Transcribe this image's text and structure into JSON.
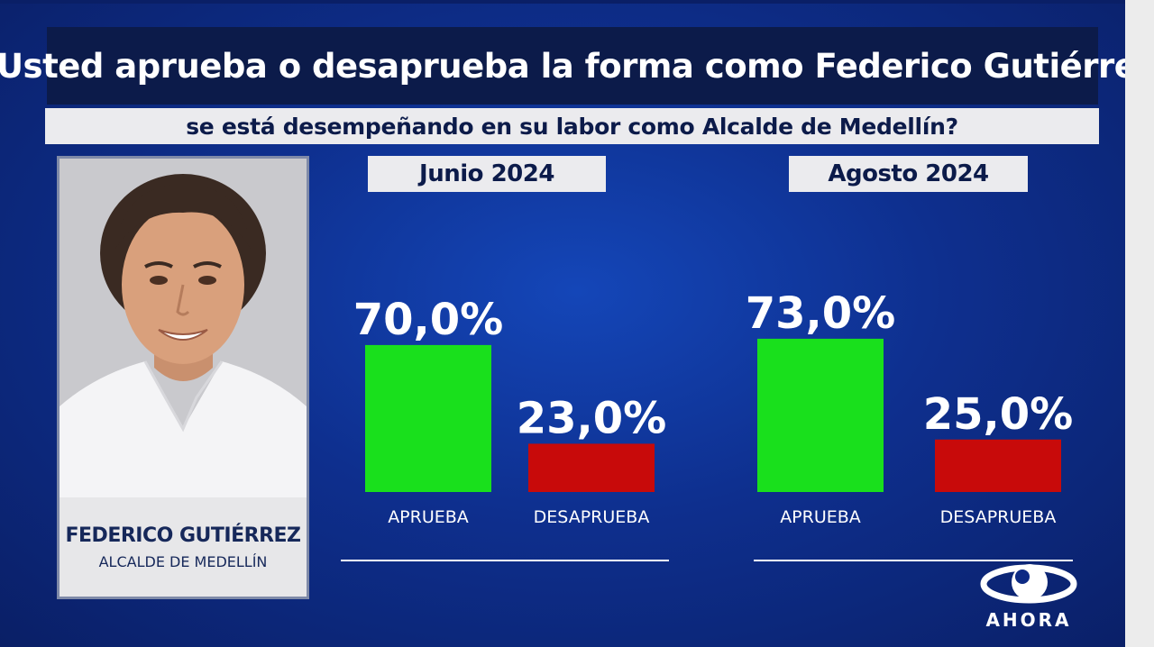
{
  "header": {
    "title": "¿Usted aprueba o desaprueba la forma como Federico Gutiérrez,",
    "subtitle": "se está desempeñando en su labor como Alcalde de Medellín?"
  },
  "candidate": {
    "name": "FEDERICO GUTIÉRREZ",
    "role": "ALCALDE DE MEDELLÍN"
  },
  "brand": {
    "name": "AHORA"
  },
  "colors": {
    "approve": "#19e01c",
    "disapprove": "#c80a0a"
  },
  "chart_data": [
    {
      "type": "bar",
      "title": "Junio 2024",
      "categories": [
        "APRUEBA",
        "DESAPRUEBA"
      ],
      "values": [
        70.0,
        23.0
      ],
      "labels": [
        "70,0%",
        "23,0%"
      ],
      "ylim": [
        0,
        100
      ],
      "grid": false
    },
    {
      "type": "bar",
      "title": "Agosto 2024",
      "categories": [
        "APRUEBA",
        "DESAPRUEBA"
      ],
      "values": [
        73.0,
        25.0
      ],
      "labels": [
        "73,0%",
        "25,0%"
      ],
      "ylim": [
        0,
        100
      ],
      "grid": false
    }
  ]
}
